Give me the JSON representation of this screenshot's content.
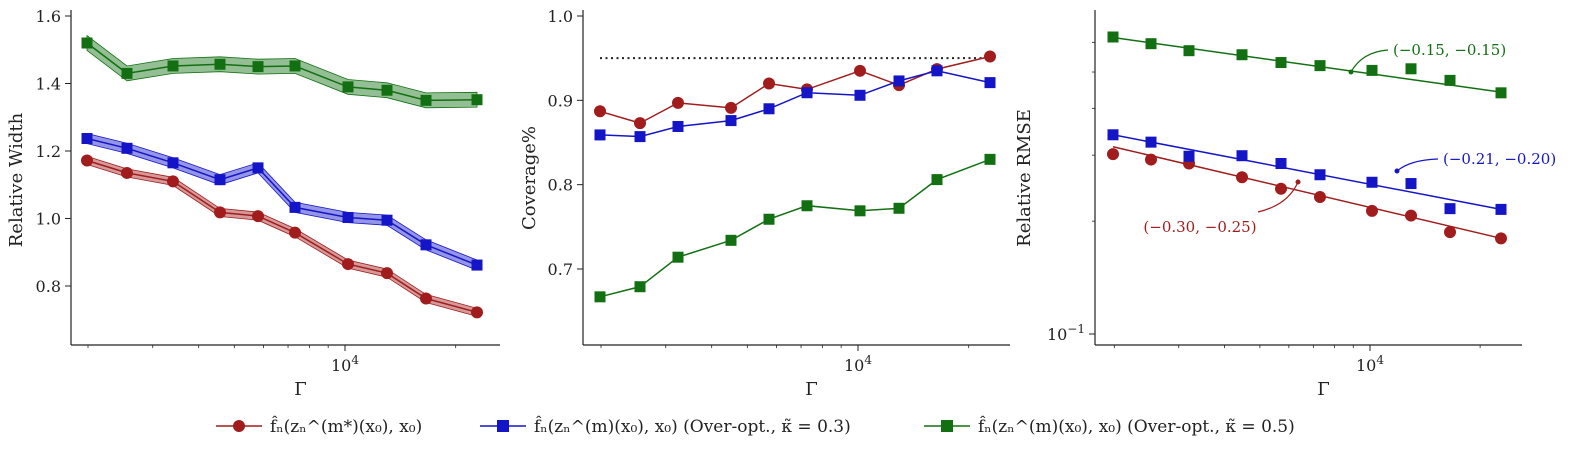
{
  "colors": {
    "red": "#a11d1d",
    "blue": "#1515c8",
    "green": "#127012",
    "axis": "#222222"
  },
  "legend": [
    {
      "label": "f̂ₙ(zₙ^(m*)(x₀), x₀)",
      "marker": "circle",
      "color": "#a11d1d"
    },
    {
      "label": "f̂ₙ(zₙ^(m)(x₀), x₀) (Over-opt., κ̃ = 0.3)",
      "marker": "square",
      "color": "#1515c8"
    },
    {
      "label": "f̂ₙ(zₙ^(m)(x₀), x₀) (Over-opt., κ̃ = 0.5)",
      "marker": "square",
      "color": "#127012"
    }
  ],
  "chart_data": [
    {
      "type": "line",
      "id": "relative-width",
      "xlabel": "Γ",
      "ylabel": "Relative Width",
      "xscale": "log",
      "xlim": [
        1800,
        30000
      ],
      "ylim": [
        0.6,
        1.6
      ],
      "yticks": [
        "0.8",
        "1.0",
        "1.2",
        "1.4",
        "1.6"
      ],
      "xticks": [
        {
          "value": 10000,
          "base": "10",
          "exp": "4"
        }
      ],
      "x": [
        2000,
        2500,
        3200,
        4500,
        5600,
        6900,
        10000,
        12300,
        16000,
        23000
      ],
      "series": [
        {
          "name": "f̂ₙ(zₙ^(m*)(x₀), x₀)",
          "color": "#a11d1d",
          "marker": "circle",
          "band": 0.012,
          "values": [
            1.172,
            1.135,
            1.11,
            1.018,
            1.007,
            0.958,
            0.865,
            0.838,
            0.763,
            0.722
          ]
        },
        {
          "name": "Over-opt., κ̃ = 0.3",
          "color": "#1515c8",
          "marker": "square",
          "band": 0.015,
          "values": [
            1.237,
            1.208,
            1.165,
            1.115,
            1.15,
            1.033,
            1.003,
            0.995,
            0.922,
            0.862
          ]
        },
        {
          "name": "Over-opt., κ̃ = 0.5",
          "color": "#127012",
          "marker": "square",
          "band": 0.022,
          "values": [
            1.52,
            1.43,
            1.452,
            1.457,
            1.45,
            1.452,
            1.39,
            1.38,
            1.35,
            1.352
          ]
        }
      ]
    },
    {
      "type": "line",
      "id": "coverage",
      "xlabel": "Γ",
      "ylabel": "Coverage%",
      "xscale": "log",
      "xlim": [
        1800,
        30000
      ],
      "ylim": [
        0.61,
        1.01
      ],
      "yticks": [
        "0.7",
        "0.8",
        "0.9",
        "1.0"
      ],
      "xticks": [
        {
          "value": 10000,
          "base": "10",
          "exp": "4"
        }
      ],
      "reference_line": {
        "y": 0.95,
        "style": "dotted",
        "color": "#222222"
      },
      "x": [
        2000,
        2500,
        3200,
        4500,
        5600,
        6900,
        10000,
        12300,
        16000,
        23000
      ],
      "series": [
        {
          "name": "f̂ₙ(zₙ^(m*)(x₀), x₀)",
          "color": "#a11d1d",
          "marker": "circle",
          "values": [
            0.887,
            0.873,
            0.897,
            0.891,
            0.92,
            0.913,
            0.935,
            0.918,
            0.937,
            0.952
          ]
        },
        {
          "name": "Over-opt., κ̃ = 0.3",
          "color": "#1515c8",
          "marker": "square",
          "values": [
            0.859,
            0.857,
            0.869,
            0.876,
            0.89,
            0.909,
            0.906,
            0.923,
            0.935,
            0.921
          ]
        },
        {
          "name": "Over-opt., κ̃ = 0.5",
          "color": "#127012",
          "marker": "square",
          "values": [
            0.667,
            0.679,
            0.714,
            0.734,
            0.759,
            0.775,
            0.769,
            0.772,
            0.806,
            0.83
          ]
        }
      ]
    },
    {
      "type": "scatter",
      "id": "relative-rmse",
      "xlabel": "Γ",
      "ylabel": "Relative RMSE",
      "xscale": "log",
      "yscale": "log",
      "xlim": [
        1800,
        30000
      ],
      "ylim": [
        0.095,
        0.7
      ],
      "yticks": [
        {
          "value": 0.1,
          "base": "10",
          "exp": "−1"
        }
      ],
      "xticks": [
        {
          "value": 10000,
          "base": "10",
          "exp": "4"
        }
      ],
      "x": [
        2000,
        2500,
        3200,
        4500,
        5600,
        6900,
        10000,
        12300,
        16000,
        23000
      ],
      "series": [
        {
          "name": "f̂ₙ(zₙ^(m*)(x₀), x₀)",
          "color": "#a11d1d",
          "marker": "circle",
          "values": [
            0.302,
            0.292,
            0.285,
            0.262,
            0.244,
            0.232,
            0.213,
            0.207,
            0.187,
            0.18
          ],
          "fit": {
            "from": 2000,
            "to": 23000,
            "y_start": 0.316,
            "y_end": 0.18
          },
          "annotation": "(−0.30, −0.25)"
        },
        {
          "name": "Over-opt., κ̃ = 0.3",
          "color": "#1515c8",
          "marker": "square",
          "values": [
            0.34,
            0.325,
            0.298,
            0.299,
            0.285,
            0.266,
            0.254,
            0.252,
            0.216,
            0.215
          ],
          "fit": {
            "from": 2000,
            "to": 23000,
            "y_start": 0.34,
            "y_end": 0.215
          },
          "annotation": "(−0.21, −0.20)"
        },
        {
          "name": "Over-opt., κ̃ = 0.5",
          "color": "#127012",
          "marker": "square",
          "values": [
            0.62,
            0.595,
            0.57,
            0.556,
            0.53,
            0.52,
            0.505,
            0.51,
            0.475,
            0.44
          ],
          "fit": {
            "from": 2000,
            "to": 23000,
            "y_start": 0.618,
            "y_end": 0.442
          },
          "annotation": "(−0.15, −0.15)"
        }
      ]
    }
  ]
}
